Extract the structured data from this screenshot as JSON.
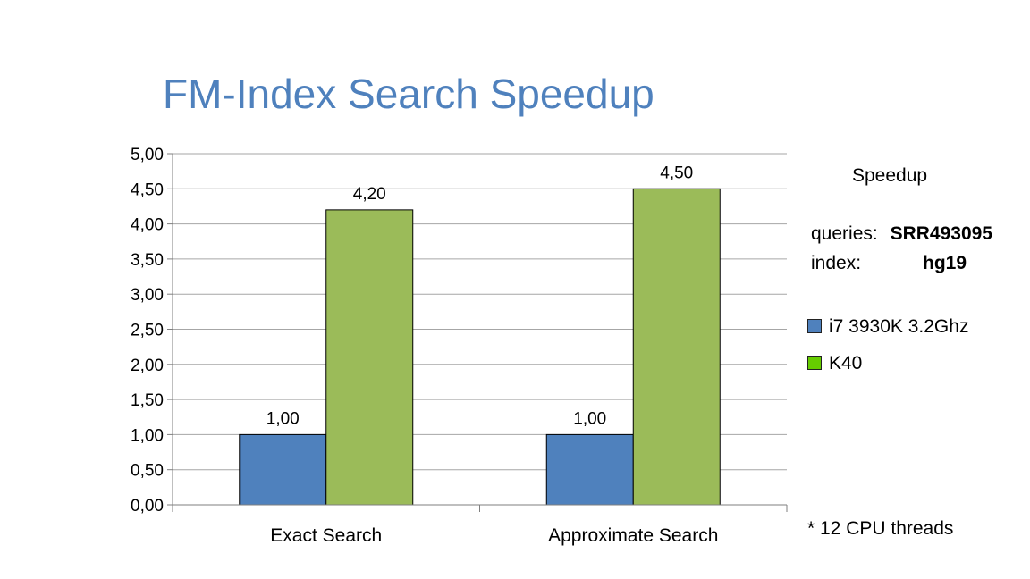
{
  "slide": {
    "title": "FM-Index Search Speedup"
  },
  "sidebar": {
    "heading": "Speedup",
    "queries_label": "queries:",
    "queries_value": "SRR493095",
    "index_label": "index:",
    "index_value": "hg19",
    "footnote": "* 12 CPU threads"
  },
  "colors": {
    "cpu": "#4f81bd",
    "gpu": "#9bbb59",
    "gpu_legend": "#66cc00",
    "grid": "#a6a6a6",
    "title": "#4f81bd"
  },
  "chart_data": {
    "type": "bar",
    "categories": [
      "Exact Search",
      "Approximate Search"
    ],
    "series": [
      {
        "name": "i7 3930K 3.2Ghz",
        "values": [
          1.0,
          1.0
        ],
        "labels": [
          "1,00",
          "1,00"
        ]
      },
      {
        "name": "K40",
        "values": [
          4.2,
          4.5
        ],
        "labels": [
          "4,20",
          "4,50"
        ]
      }
    ],
    "ylim": [
      0,
      5
    ],
    "yticks": [
      0,
      0.5,
      1,
      1.5,
      2,
      2.5,
      3,
      3.5,
      4,
      4.5,
      5
    ],
    "ytick_labels": [
      "0,00",
      "0,50",
      "1,00",
      "1,50",
      "2,00",
      "2,50",
      "3,00",
      "3,50",
      "4,00",
      "4,50",
      "5,00"
    ],
    "grid": true,
    "legend": "right"
  }
}
